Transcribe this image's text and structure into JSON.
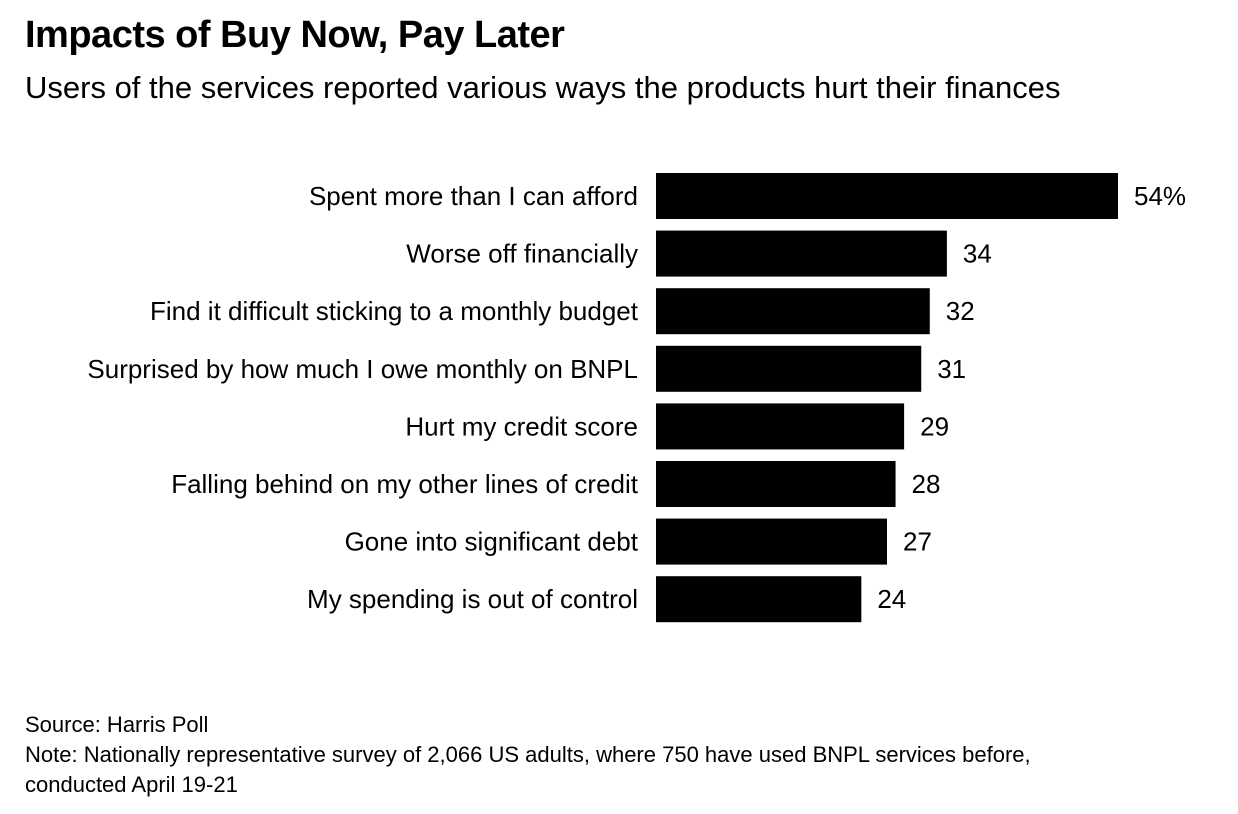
{
  "title": "Impacts of Buy Now, Pay Later",
  "subtitle": "Users of the services reported various ways the products hurt their finances",
  "footer": {
    "source": "Source: Harris Poll",
    "note_line1": "Note: Nationally representative survey of 2,066 US adults, where 750 have used BNPL services before,",
    "note_line2": "conducted April 19-21"
  },
  "colors": {
    "bar": "#000000",
    "text": "#000000",
    "background": "#ffffff"
  },
  "chart_data": {
    "type": "bar",
    "orientation": "horizontal",
    "categories": [
      "Spent more than I can afford",
      "Worse off financially",
      "Find it difficult sticking to a monthly budget",
      "Surprised by how much I owe monthly on BNPL",
      "Hurt my credit score",
      "Falling behind on my other lines of credit",
      "Gone into significant debt",
      "My spending is out of control"
    ],
    "values": [
      54,
      34,
      32,
      31,
      29,
      28,
      27,
      24
    ],
    "value_labels": [
      "54%",
      "34",
      "32",
      "31",
      "29",
      "28",
      "27",
      "24"
    ],
    "unit": "%",
    "xlim": [
      0,
      54
    ],
    "grid": false,
    "legend": "none"
  }
}
